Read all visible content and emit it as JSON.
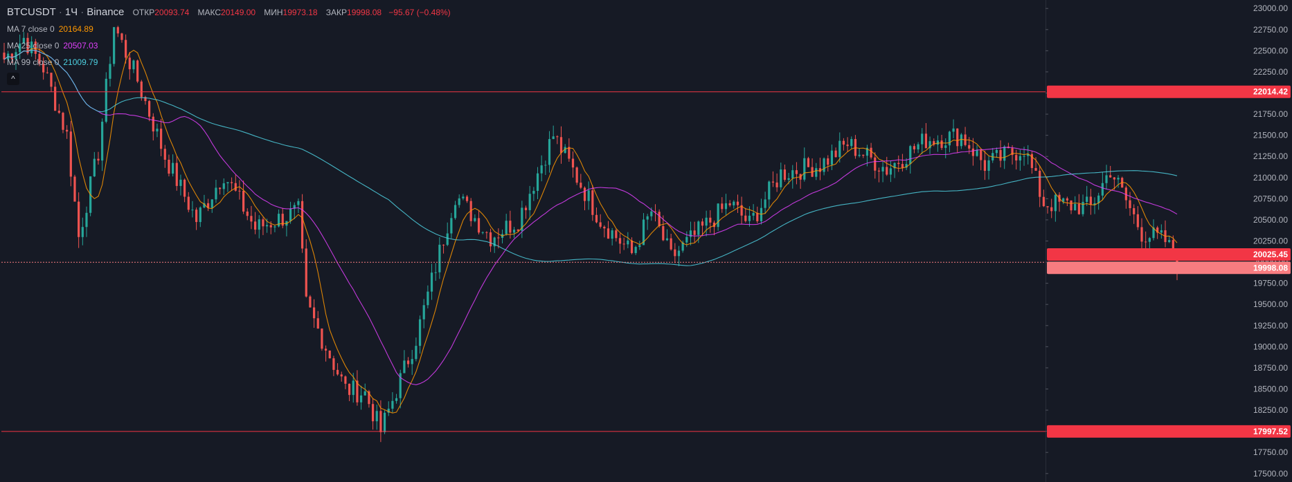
{
  "header": {
    "symbol": "BTCUSDT",
    "interval": "1Ч",
    "exchange": "Binance",
    "open_label": "ОТКР",
    "open": "20093.74",
    "high_label": "МАКС",
    "high": "20149.00",
    "low_label": "МИН",
    "low": "19973.18",
    "close_label": "ЗАКР",
    "close": "19998.08",
    "change": "−95.67 (−0.48%)",
    "collapse_glyph": "^"
  },
  "indicators": [
    {
      "label": "MA 7 close 0",
      "value": "20164.89",
      "color": "#ff9800"
    },
    {
      "label": "MA 25 close 0",
      "value": "20507.03",
      "color": "#e040fb"
    },
    {
      "label": "MA 99 close 0",
      "value": "21009.79",
      "color": "#4dd0e1"
    }
  ],
  "chart_data": {
    "type": "candlestick",
    "y_axis": {
      "min": 17400,
      "max": 23100,
      "ticks": [
        "23000.00",
        "22750.00",
        "22500.00",
        "22250.00",
        "22000.00",
        "21750.00",
        "21500.00",
        "21250.00",
        "21000.00",
        "20750.00",
        "20500.00",
        "20250.00",
        "20000.00",
        "19750.00",
        "19500.00",
        "19250.00",
        "19000.00",
        "18750.00",
        "18500.00",
        "18250.00",
        "18000.00",
        "17750.00",
        "17500.00"
      ]
    },
    "horizontal_levels": [
      {
        "price": 22014.42,
        "label": "22014.42",
        "color": "#f23645"
      },
      {
        "price": 17997.52,
        "label": "17997.52",
        "color": "#f23645"
      }
    ],
    "price_tags": [
      {
        "price": 20025.45,
        "label": "20025.45",
        "color": "#f23645"
      },
      {
        "price": 19998.08,
        "label": "19998.08",
        "color": "#f77c80"
      }
    ],
    "candles_count": 300,
    "anchors": [
      {
        "i": 0,
        "p": 22400
      },
      {
        "i": 5,
        "p": 22650
      },
      {
        "i": 10,
        "p": 22300
      },
      {
        "i": 16,
        "p": 21500
      },
      {
        "i": 19,
        "p": 20300
      },
      {
        "i": 24,
        "p": 21300
      },
      {
        "i": 28,
        "p": 22800
      },
      {
        "i": 34,
        "p": 22150
      },
      {
        "i": 41,
        "p": 21250
      },
      {
        "i": 49,
        "p": 20500
      },
      {
        "i": 56,
        "p": 21050
      },
      {
        "i": 64,
        "p": 20400
      },
      {
        "i": 75,
        "p": 20600
      },
      {
        "i": 77,
        "p": 19500
      },
      {
        "i": 87,
        "p": 18500
      },
      {
        "i": 92,
        "p": 18450
      },
      {
        "i": 96,
        "p": 18000
      },
      {
        "i": 105,
        "p": 19100
      },
      {
        "i": 115,
        "p": 20800
      },
      {
        "i": 124,
        "p": 20300
      },
      {
        "i": 131,
        "p": 20500
      },
      {
        "i": 140,
        "p": 21500
      },
      {
        "i": 152,
        "p": 20500
      },
      {
        "i": 160,
        "p": 20100
      },
      {
        "i": 165,
        "p": 20600
      },
      {
        "i": 170,
        "p": 20050
      },
      {
        "i": 185,
        "p": 20700
      },
      {
        "i": 190,
        "p": 20450
      },
      {
        "i": 198,
        "p": 21050
      },
      {
        "i": 208,
        "p": 21150
      },
      {
        "i": 215,
        "p": 21400
      },
      {
        "i": 225,
        "p": 21100
      },
      {
        "i": 235,
        "p": 21450
      },
      {
        "i": 244,
        "p": 21500
      },
      {
        "i": 250,
        "p": 21150
      },
      {
        "i": 260,
        "p": 21350
      },
      {
        "i": 265,
        "p": 20700
      },
      {
        "i": 277,
        "p": 20650
      },
      {
        "i": 282,
        "p": 21100
      },
      {
        "i": 290,
        "p": 20350
      },
      {
        "i": 296,
        "p": 20250
      },
      {
        "i": 299,
        "p": 20000
      }
    ],
    "colors": {
      "up": "#26a69a",
      "down": "#ef5350",
      "background": "#161a25",
      "axis_border": "#2a2e39"
    }
  }
}
